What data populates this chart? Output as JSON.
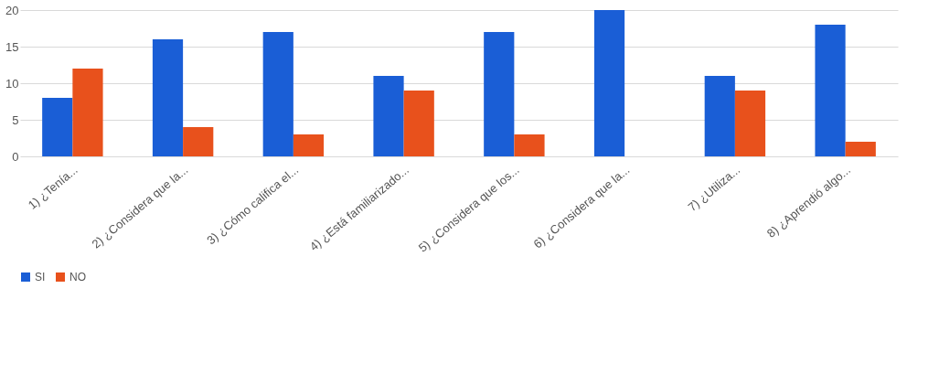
{
  "chart_data": {
    "type": "bar",
    "categories": [
      "1) ¿Tenía...",
      "2) ¿Considera que la...",
      "3) ¿Cómo califica el...",
      "4) ¿Está familiarizado...",
      "5) ¿Considera que los...",
      "6) ¿Considera que la...",
      "7) ¿Utiliza...",
      "8) ¿Aprendió algo..."
    ],
    "series": [
      {
        "name": "SI",
        "color": "#1a5ed6",
        "values": [
          8,
          16,
          17,
          11,
          17,
          20,
          11,
          18
        ]
      },
      {
        "name": "NO",
        "color": "#e8511c",
        "values": [
          12,
          4,
          3,
          9,
          3,
          0,
          9,
          2
        ]
      }
    ],
    "ylim": [
      0,
      20
    ],
    "yticks": [
      0,
      5,
      10,
      15,
      20
    ],
    "grid": "y",
    "legend": "bottom"
  }
}
